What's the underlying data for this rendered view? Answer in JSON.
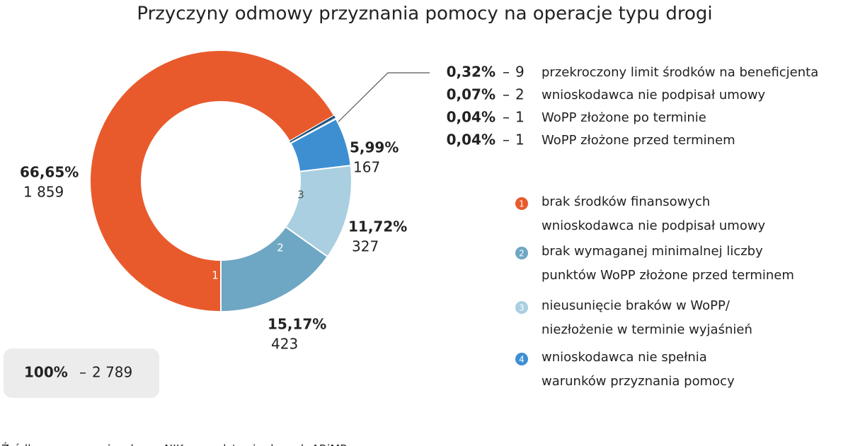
{
  "chart_data": {
    "type": "donut",
    "title": "Przyczyny odmowy przyznania pomocy na operacje typu drogi",
    "categories": [
      "1",
      null,
      null,
      null,
      null,
      "4",
      "3",
      "2"
    ],
    "values": [
      66.65,
      0.32,
      0.07,
      0.04,
      0.04,
      5.99,
      11.72,
      15.17
    ],
    "value_labels": [
      "66,65%",
      "0,32%",
      "0,07%",
      "0,04%",
      "0,04%",
      "5,99%",
      "11,72%",
      "15,17%"
    ],
    "counts": [
      1859,
      9,
      2,
      1,
      1,
      167,
      327,
      423
    ],
    "count_labels": [
      "1 859",
      "9",
      "2",
      "1",
      "1",
      "167",
      "327",
      "423"
    ],
    "colors": [
      "#e85a2c",
      "#1d4f7c",
      "#2a6aa3",
      "#3a7fc0",
      "#4b8fce",
      "#3d8fd2",
      "#a9cfe0",
      "#6ea7c3"
    ],
    "descriptions": [
      [
        "brak środków finansowych",
        "wnioskodawca nie podpisał umowy"
      ],
      [
        "przekroczony limit środków na beneficjenta"
      ],
      [
        "wnioskodawca nie podpisał umowy"
      ],
      [
        "WoPP złożone po terminie"
      ],
      [
        "WoPP złożone przed terminem"
      ],
      [
        "wnioskodawca nie spełnia",
        "warunków przyznania pomocy"
      ],
      [
        "nieusunięcie braków w WoPP/",
        "niezłożenie w terminie wyjaśnień"
      ],
      [
        "brak wymaganej minimalnej liczby",
        "punktów WoPP złożone przed terminem"
      ]
    ],
    "separator": "–",
    "total": {
      "value": 100,
      "label": "100%",
      "count": 2789,
      "count_label": "2 789"
    },
    "source": "Źródło: opracowanie własne NIK na podstawie danych ARiMR"
  }
}
